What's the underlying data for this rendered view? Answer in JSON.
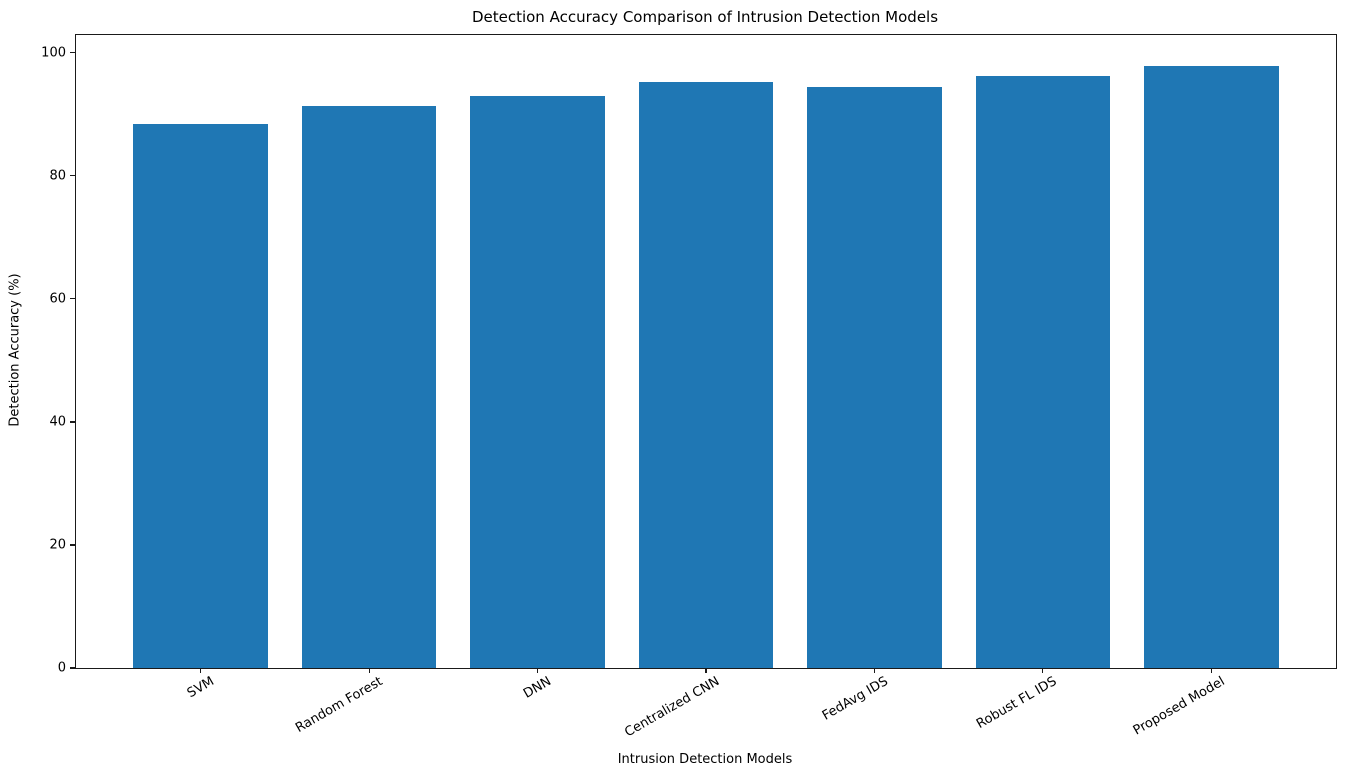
{
  "chart_data": {
    "type": "bar",
    "title": "Detection Accuracy Comparison of Intrusion Detection Models",
    "xlabel": "Intrusion Detection Models",
    "ylabel": "Detection Accuracy (%)",
    "categories": [
      "SVM",
      "Random Forest",
      "DNN",
      "Centralized CNN",
      "FedAvg IDS",
      "Robust FL IDS",
      "Proposed Model"
    ],
    "values": [
      88.5,
      91.3,
      93.0,
      95.2,
      94.5,
      96.3,
      97.8
    ],
    "yticks": [
      0,
      20,
      40,
      60,
      80,
      100
    ],
    "ylim": [
      0,
      102.9
    ],
    "bar_color": "#1f77b4",
    "axis_color": "#1a1a1a",
    "text_color": "#000000",
    "grid": false,
    "legend_position": "none",
    "x_tick_rotation_deg": 30
  }
}
